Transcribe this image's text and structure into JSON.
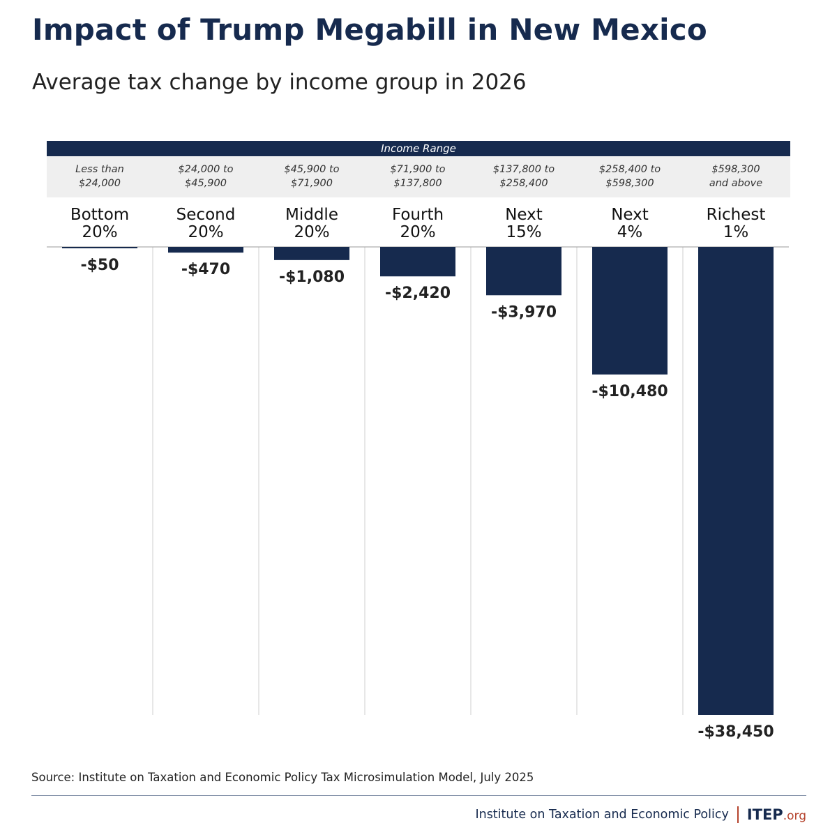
{
  "header": {
    "title": "Impact of Trump Megabill in New Mexico",
    "subtitle": "Average tax change by income group in 2026"
  },
  "income_range_heading": "Income Range",
  "groups": [
    {
      "range": "Less than\n$24,000",
      "label_line1": "Bottom",
      "label_line2": "20%"
    },
    {
      "range": "$24,000 to\n$45,900",
      "label_line1": "Second",
      "label_line2": "20%"
    },
    {
      "range": "$45,900 to\n$71,900",
      "label_line1": "Middle",
      "label_line2": "20%"
    },
    {
      "range": "$71,900 to\n$137,800",
      "label_line1": "Fourth",
      "label_line2": "20%"
    },
    {
      "range": "$137,800 to\n$258,400",
      "label_line1": "Next",
      "label_line2": "15%"
    },
    {
      "range": "$258,400 to\n$598,300",
      "label_line1": "Next",
      "label_line2": "4%"
    },
    {
      "range": "$598,300\nand above",
      "label_line1": "Richest",
      "label_line2": "1%"
    }
  ],
  "chart_data": {
    "type": "bar",
    "title": "Impact of Trump Megabill in New Mexico",
    "subtitle": "Average tax change by income group in 2026",
    "categories": [
      "Bottom 20%",
      "Second 20%",
      "Middle 20%",
      "Fourth 20%",
      "Next 15%",
      "Next 4%",
      "Richest 1%"
    ],
    "values": [
      -50,
      -470,
      -1080,
      -2420,
      -3970,
      -10480,
      -38450
    ],
    "value_labels": [
      "-$50",
      "-$470",
      "-$1,080",
      "-$2,420",
      "-$3,970",
      "-$10,480",
      "-$38,450"
    ],
    "ylim": [
      -38450,
      0
    ],
    "bar_color": "#162a4e",
    "grid": false
  },
  "source": "Source: Institute on Taxation and Economic Policy Tax Microsimulation Model, July 2025",
  "footer": {
    "org_name": "Institute on Taxation and Economic Policy",
    "logo_main": "ITEP",
    "logo_org": ".org",
    "brand_color": "#162a4e",
    "accent_color": "#b5432d"
  }
}
